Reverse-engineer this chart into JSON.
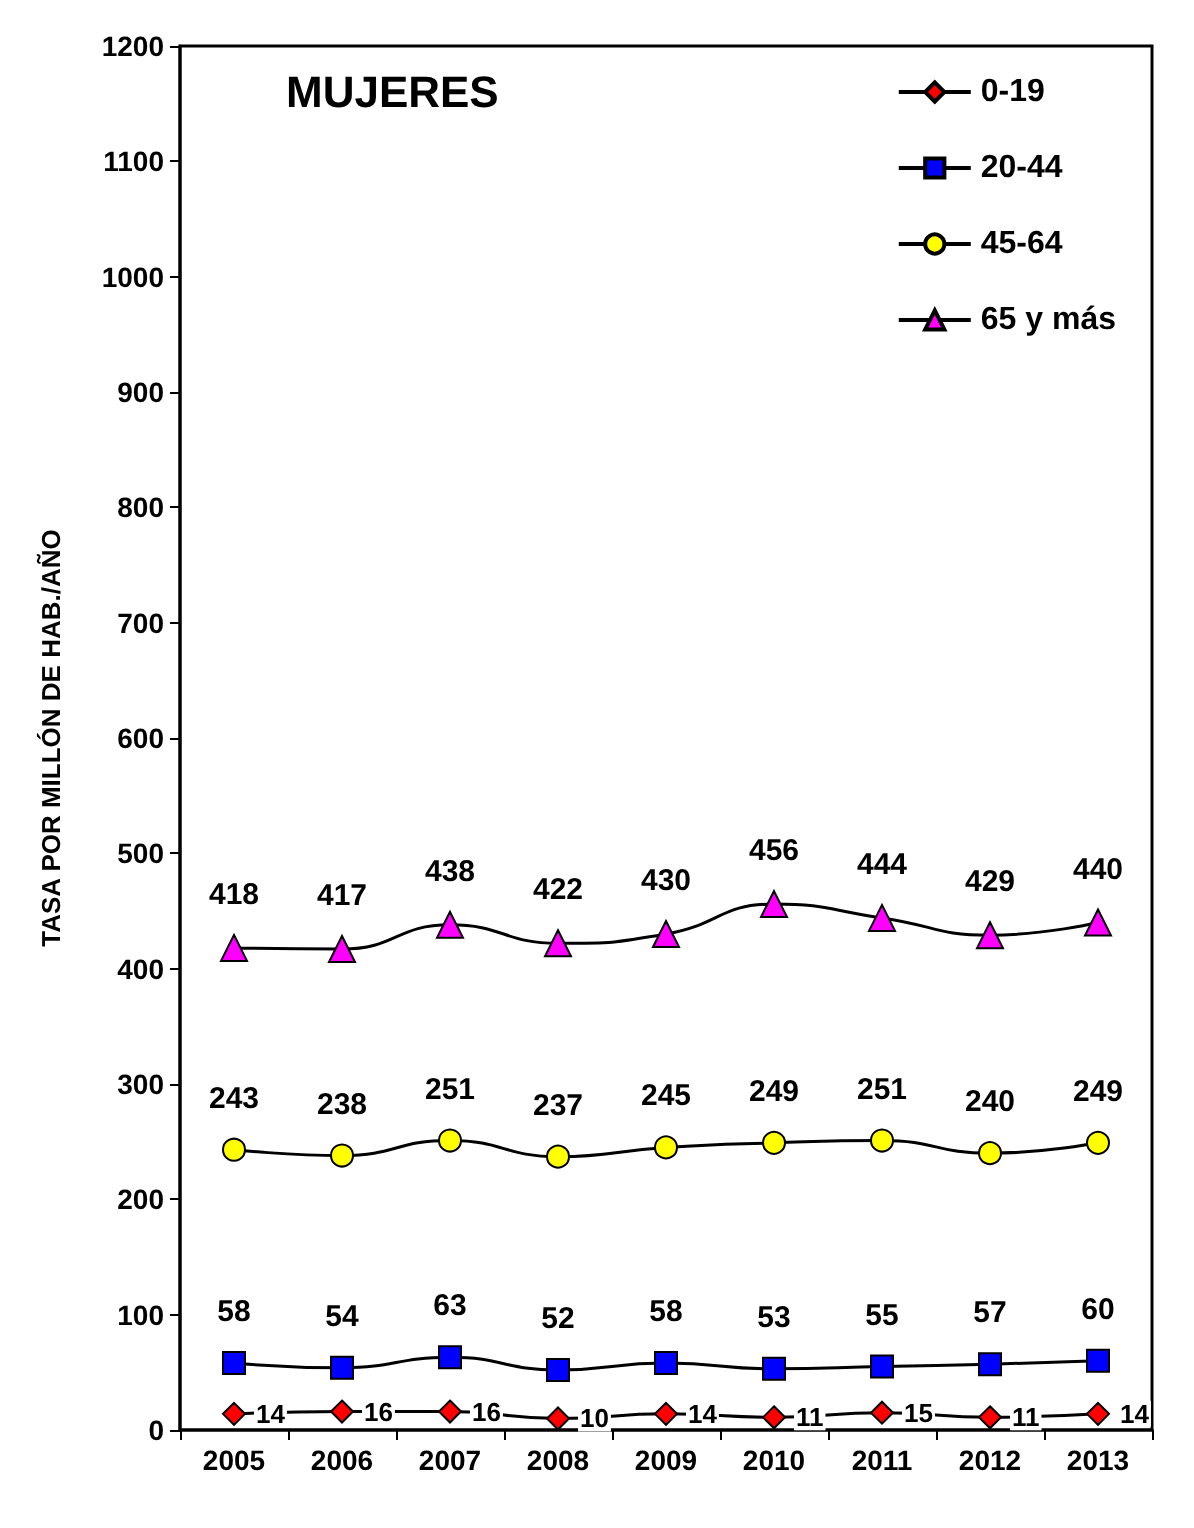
{
  "chart_data": {
    "type": "line",
    "title": "MUJERES",
    "ylabel": "TASA POR MILLÓN DE HAB./AÑO",
    "categories": [
      "2005",
      "2006",
      "2007",
      "2008",
      "2009",
      "2010",
      "2011",
      "2012",
      "2013"
    ],
    "series": [
      {
        "name": "0-19",
        "color": "#ff0000",
        "marker": "diamond",
        "values": [
          14,
          16,
          16,
          10,
          14,
          11,
          15,
          11,
          14
        ]
      },
      {
        "name": "20-44",
        "color": "#0000ff",
        "marker": "square",
        "values": [
          58,
          54,
          63,
          52,
          58,
          53,
          55,
          57,
          60
        ]
      },
      {
        "name": "45-64",
        "color": "#ffff00",
        "marker": "circle",
        "values": [
          243,
          238,
          251,
          237,
          245,
          249,
          251,
          240,
          249
        ]
      },
      {
        "name": "65 y más",
        "color": "#ff00ff",
        "marker": "triangle",
        "values": [
          418,
          417,
          438,
          422,
          430,
          456,
          444,
          429,
          440
        ]
      }
    ],
    "ylim": [
      0,
      1200
    ],
    "yticks": [
      0,
      100,
      200,
      300,
      400,
      500,
      600,
      700,
      800,
      900,
      1000,
      1100,
      1200
    ],
    "grid": false,
    "legend": "top right",
    "data_labels": true,
    "line_style": "solid"
  }
}
